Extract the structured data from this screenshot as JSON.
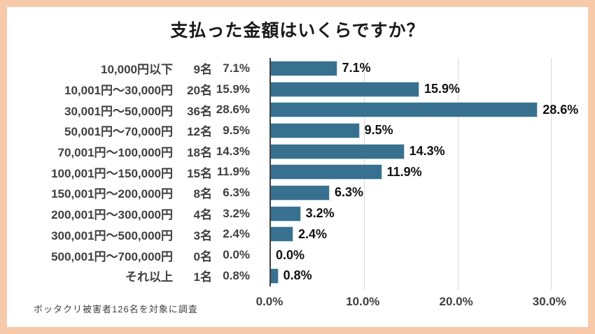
{
  "title": "支払った金額はいくらですか？",
  "footer_note": "ボッタクリ被害者126名を対象に調査",
  "colors": {
    "bar": "#38718F",
    "frame": "#F7C9AB",
    "grid": "#D6D6D6",
    "axis": "#404040",
    "label_text": "#404040",
    "value_text": "#111111"
  },
  "x_axis": {
    "ticks": [
      "0.0%",
      "10.0%",
      "20.0%",
      "30.0%"
    ],
    "tick_values": [
      0,
      10,
      20,
      30
    ]
  },
  "chart_data": {
    "type": "bar",
    "orientation": "horizontal",
    "title": "支払った金額はいくらですか？",
    "categories": [
      "10,000円以下",
      "10,001円～30,000円",
      "30,001円～50,000円",
      "50,001円～70,000円",
      "70,001円～100,000円",
      "100,001円～150,000円",
      "150,001円～200,000円",
      "200,001円～300,000円",
      "300,001円～500,000円",
      "500,001円～700,000円",
      "それ以上"
    ],
    "counts": [
      "9名",
      "20名",
      "36名",
      "12名",
      "18名",
      "15名",
      "8名",
      "4名",
      "3名",
      "0名",
      "1名"
    ],
    "percent_labels": [
      "7.1%",
      "15.9%",
      "28.6%",
      "9.5%",
      "14.3%",
      "11.9%",
      "6.3%",
      "3.2%",
      "2.4%",
      "0.0%",
      "0.8%"
    ],
    "values": [
      7.1,
      15.9,
      28.6,
      9.5,
      14.3,
      11.9,
      6.3,
      3.2,
      2.4,
      0.0,
      0.8
    ],
    "xlim": [
      0,
      30
    ],
    "x_ticks": [
      0,
      10,
      20,
      30
    ],
    "grid": true,
    "legend": false,
    "annotation": "ボッタクリ被害者126名を対象に調査"
  }
}
